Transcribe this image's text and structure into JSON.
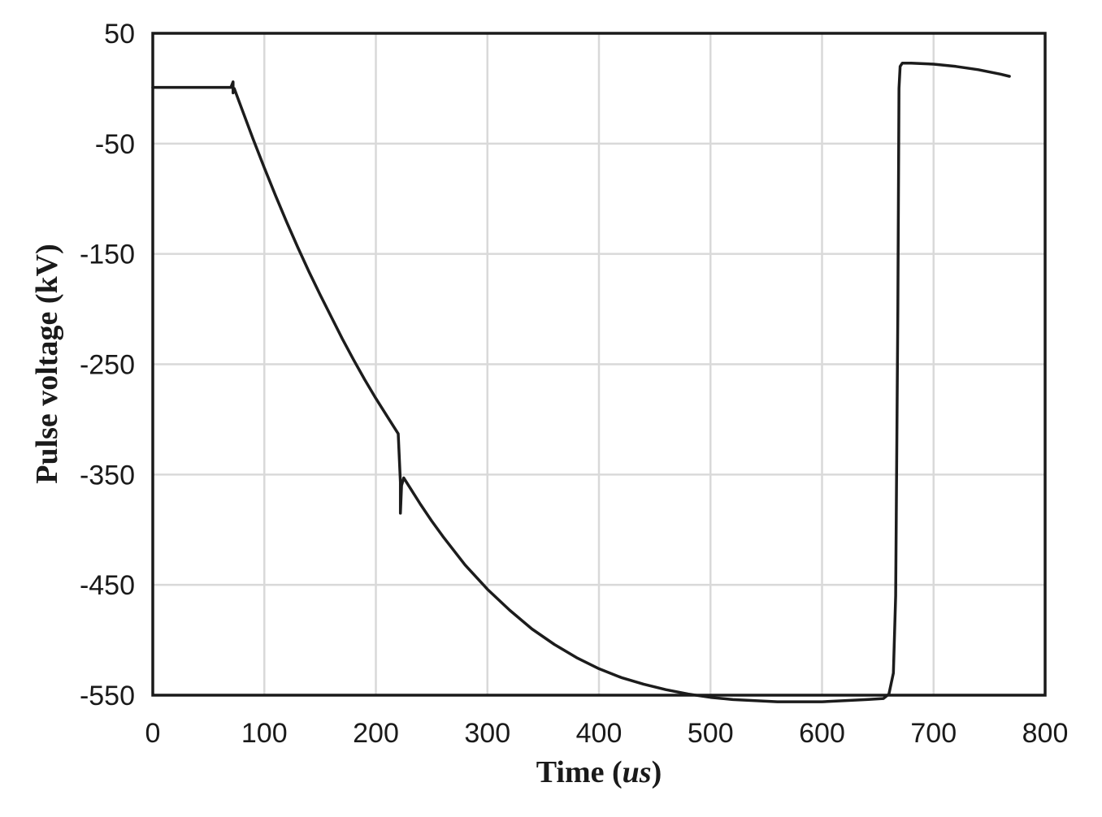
{
  "chart_data": {
    "type": "line",
    "title": "",
    "xlabel_prefix": "Time (",
    "xlabel_unit": "us",
    "xlabel_suffix": ")",
    "ylabel": "Pulse voltage (kV)",
    "xlim": [
      0,
      800
    ],
    "ylim": [
      -550,
      50
    ],
    "xticks": [
      0,
      100,
      200,
      300,
      400,
      500,
      600,
      700,
      800
    ],
    "yticks": [
      50,
      -50,
      -150,
      -250,
      -350,
      -450,
      -550
    ],
    "xtick_labels": [
      "0",
      "100",
      "200",
      "300",
      "400",
      "500",
      "600",
      "700",
      "800"
    ],
    "ytick_labels": [
      "50",
      "-50",
      "-150",
      "-250",
      "-350",
      "-450",
      "-550"
    ],
    "grid": true,
    "legend": "none",
    "series": [
      {
        "color": "#1c1c1c",
        "x": [
          0,
          20,
          40,
          60,
          70,
          72,
          72,
          73,
          80,
          90,
          100,
          110,
          120,
          130,
          140,
          150,
          160,
          170,
          180,
          190,
          200,
          210,
          220,
          222,
          222,
          223,
          225,
          230,
          240,
          250,
          260,
          280,
          300,
          320,
          340,
          360,
          380,
          400,
          420,
          440,
          460,
          480,
          500,
          520,
          540,
          560,
          580,
          600,
          620,
          640,
          655,
          660,
          664,
          666,
          668,
          669,
          670,
          672,
          680,
          700,
          720,
          740,
          760,
          768
        ],
        "y": [
          1,
          1,
          1,
          1,
          1,
          6,
          -4,
          0,
          -19,
          -46,
          -72,
          -97,
          -121,
          -144,
          -166,
          -187,
          -207,
          -227,
          -246,
          -264,
          -281,
          -297,
          -313,
          -357,
          -385,
          -360,
          -353,
          -361,
          -377,
          -392,
          -406,
          -432,
          -454,
          -473,
          -490,
          -504,
          -516,
          -526,
          -534,
          -540,
          -545,
          -549,
          -552,
          -554,
          -555,
          -556,
          -556,
          -556,
          -555,
          -554,
          -553,
          -549,
          -530,
          -460,
          -200,
          0,
          20,
          23,
          23,
          22,
          20,
          17,
          13,
          11
        ]
      }
    ]
  }
}
